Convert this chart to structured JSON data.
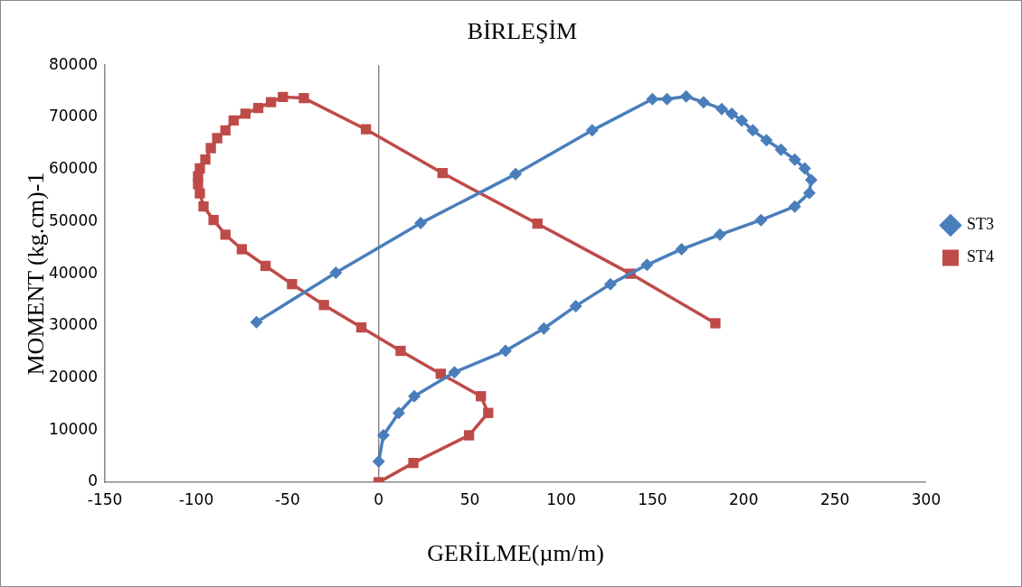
{
  "chart_data": {
    "type": "line",
    "title": "BİRLEŞİM",
    "xlabel": "GERİLME(µm/m)",
    "ylabel": "MOMENT (kg.cm)-1",
    "xlim": [
      -150,
      300
    ],
    "xticks": [
      -150,
      -100,
      -50,
      0,
      50,
      100,
      150,
      200,
      250,
      300
    ],
    "ylim": [
      0,
      80000
    ],
    "yticks": [
      0,
      10000,
      20000,
      30000,
      40000,
      50000,
      60000,
      70000,
      80000
    ],
    "grid": false,
    "legend": "right",
    "ref_lines": [
      {
        "axis": "x",
        "value": 0,
        "color": "#888888"
      }
    ],
    "series": [
      {
        "name": "ST3",
        "color": "#4a7ebb",
        "marker": "diamond",
        "x": [
          0,
          2.6,
          11,
          19.5,
          41.5,
          69.5,
          90.5,
          108,
          127,
          147,
          166,
          187,
          209.5,
          228,
          236,
          237,
          233.5,
          228,
          220.5,
          212.5,
          205,
          199,
          193.5,
          188,
          178,
          168.5,
          158,
          150,
          117,
          75,
          23,
          -23.5,
          -67
        ],
        "values": [
          4000,
          9000,
          13300,
          16500,
          21100,
          25200,
          29500,
          33800,
          38000,
          41700,
          44700,
          47500,
          50300,
          52900,
          55500,
          58000,
          60200,
          61900,
          63800,
          65600,
          67500,
          69400,
          70700,
          71600,
          72900,
          74000,
          73500,
          73500,
          67500,
          59100,
          49700,
          40200,
          30700
        ]
      },
      {
        "name": "ST4",
        "color": "#be4b48",
        "marker": "square",
        "x": [
          0,
          19,
          49.5,
          60,
          56,
          34,
          12,
          -9.5,
          -30,
          -47.5,
          -62,
          -75,
          -84,
          -90.5,
          -96,
          -98,
          -99,
          -99,
          -98,
          -95,
          -92,
          -88.5,
          -84,
          -79.5,
          -73,
          -66,
          -59,
          -52.5,
          -41,
          -7,
          35,
          87,
          138,
          184.5
        ],
        "values": [
          0,
          3700,
          9000,
          13300,
          16500,
          20800,
          25200,
          29700,
          34000,
          38000,
          41500,
          44700,
          47500,
          50300,
          52900,
          55400,
          57200,
          58700,
          60200,
          61900,
          64100,
          66000,
          67500,
          69400,
          70700,
          71800,
          72900,
          73900,
          73700,
          67700,
          59300,
          49600,
          40000,
          30500
        ]
      }
    ]
  }
}
